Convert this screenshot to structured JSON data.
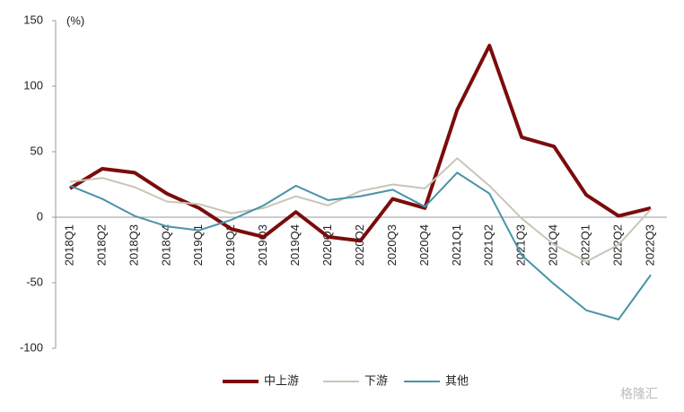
{
  "chart_data": {
    "type": "line",
    "unit_label": "(%)",
    "categories": [
      "2018Q1",
      "2018Q2",
      "2018Q3",
      "2018Q4",
      "2019Q1",
      "2019Q2",
      "2019Q3",
      "2019Q4",
      "2020Q1",
      "2020Q2",
      "2020Q3",
      "2020Q4",
      "2021Q1",
      "2021Q2",
      "2021Q3",
      "2021Q4",
      "2022Q1",
      "2022Q2",
      "2022Q3"
    ],
    "series": [
      {
        "name": "中上游",
        "color": "#7b0c0c",
        "width": 4,
        "values": [
          22,
          37,
          34,
          18,
          7,
          -9,
          -15,
          4,
          -15,
          -18,
          14,
          7,
          82,
          131,
          61,
          54,
          17,
          1,
          7
        ]
      },
      {
        "name": "下游",
        "color": "#c9c5b8",
        "width": 2,
        "values": [
          27,
          30,
          23,
          12,
          10,
          3,
          7,
          16,
          9,
          20,
          25,
          22,
          45,
          24,
          -1,
          -21,
          -34,
          -21,
          6
        ]
      },
      {
        "name": "其他",
        "color": "#4a93a8",
        "width": 2,
        "values": [
          24,
          14,
          1,
          -7,
          -10,
          -2,
          9,
          24,
          13,
          16,
          21,
          8,
          34,
          18,
          -29,
          -51,
          -71,
          -78,
          -44
        ]
      }
    ],
    "ylim": [
      -100,
      150
    ],
    "yticks": [
      -100,
      -50,
      0,
      50,
      100,
      150
    ],
    "legend": "bottom",
    "grid": false,
    "watermark": "格隆汇"
  }
}
